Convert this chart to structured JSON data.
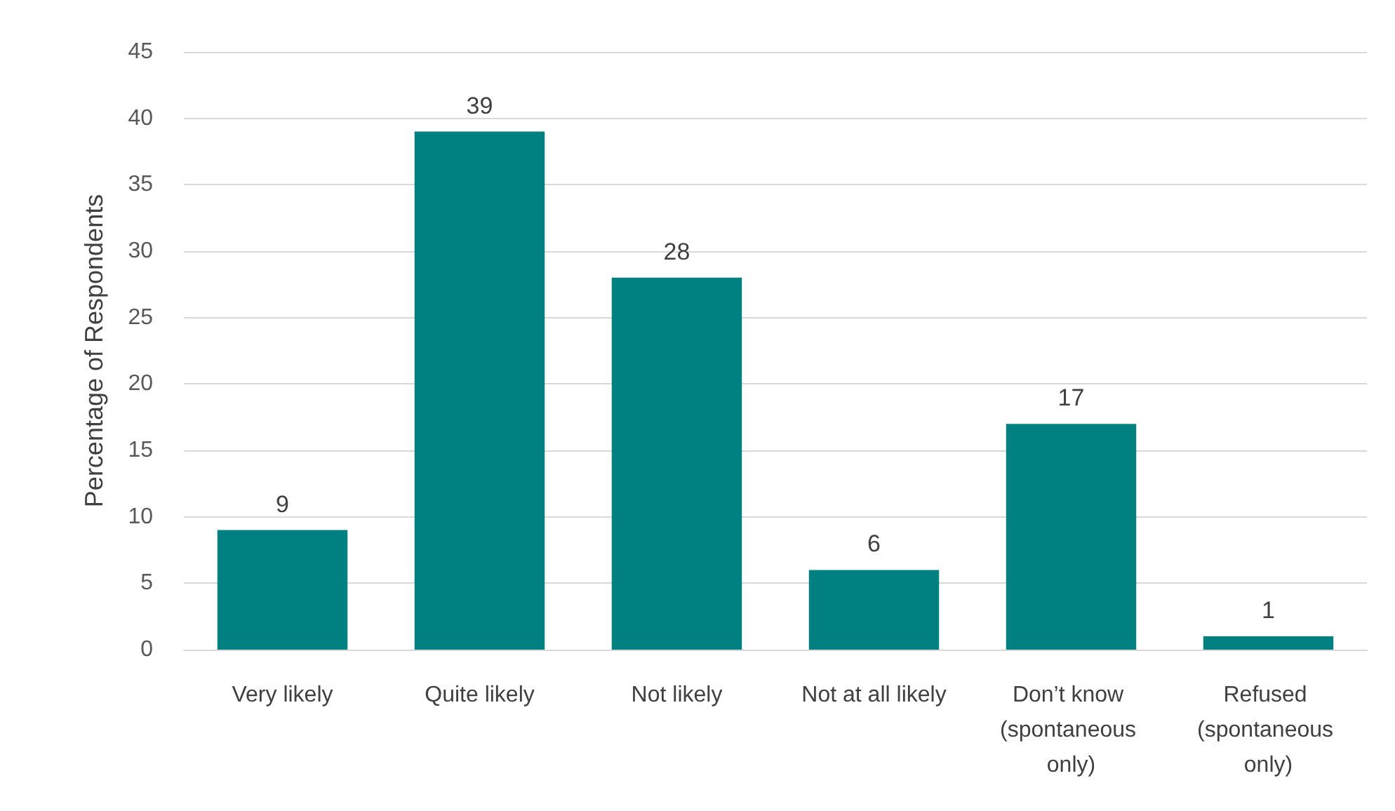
{
  "chart_data": {
    "type": "bar",
    "ylabel": "Percentage of Respondents",
    "categories": [
      "Very likely",
      "Quite likely",
      "Not likely",
      "Not at all likely",
      "Don’t know (spontaneous only)",
      "Refused (spontaneous only)"
    ],
    "values": [
      9,
      39,
      28,
      6,
      17,
      1
    ],
    "color": "#008080",
    "ylim": [
      0,
      45
    ],
    "yticks": [
      0,
      5,
      10,
      15,
      20,
      25,
      30,
      35,
      40,
      45
    ],
    "grid": "y",
    "data_labels": true
  }
}
